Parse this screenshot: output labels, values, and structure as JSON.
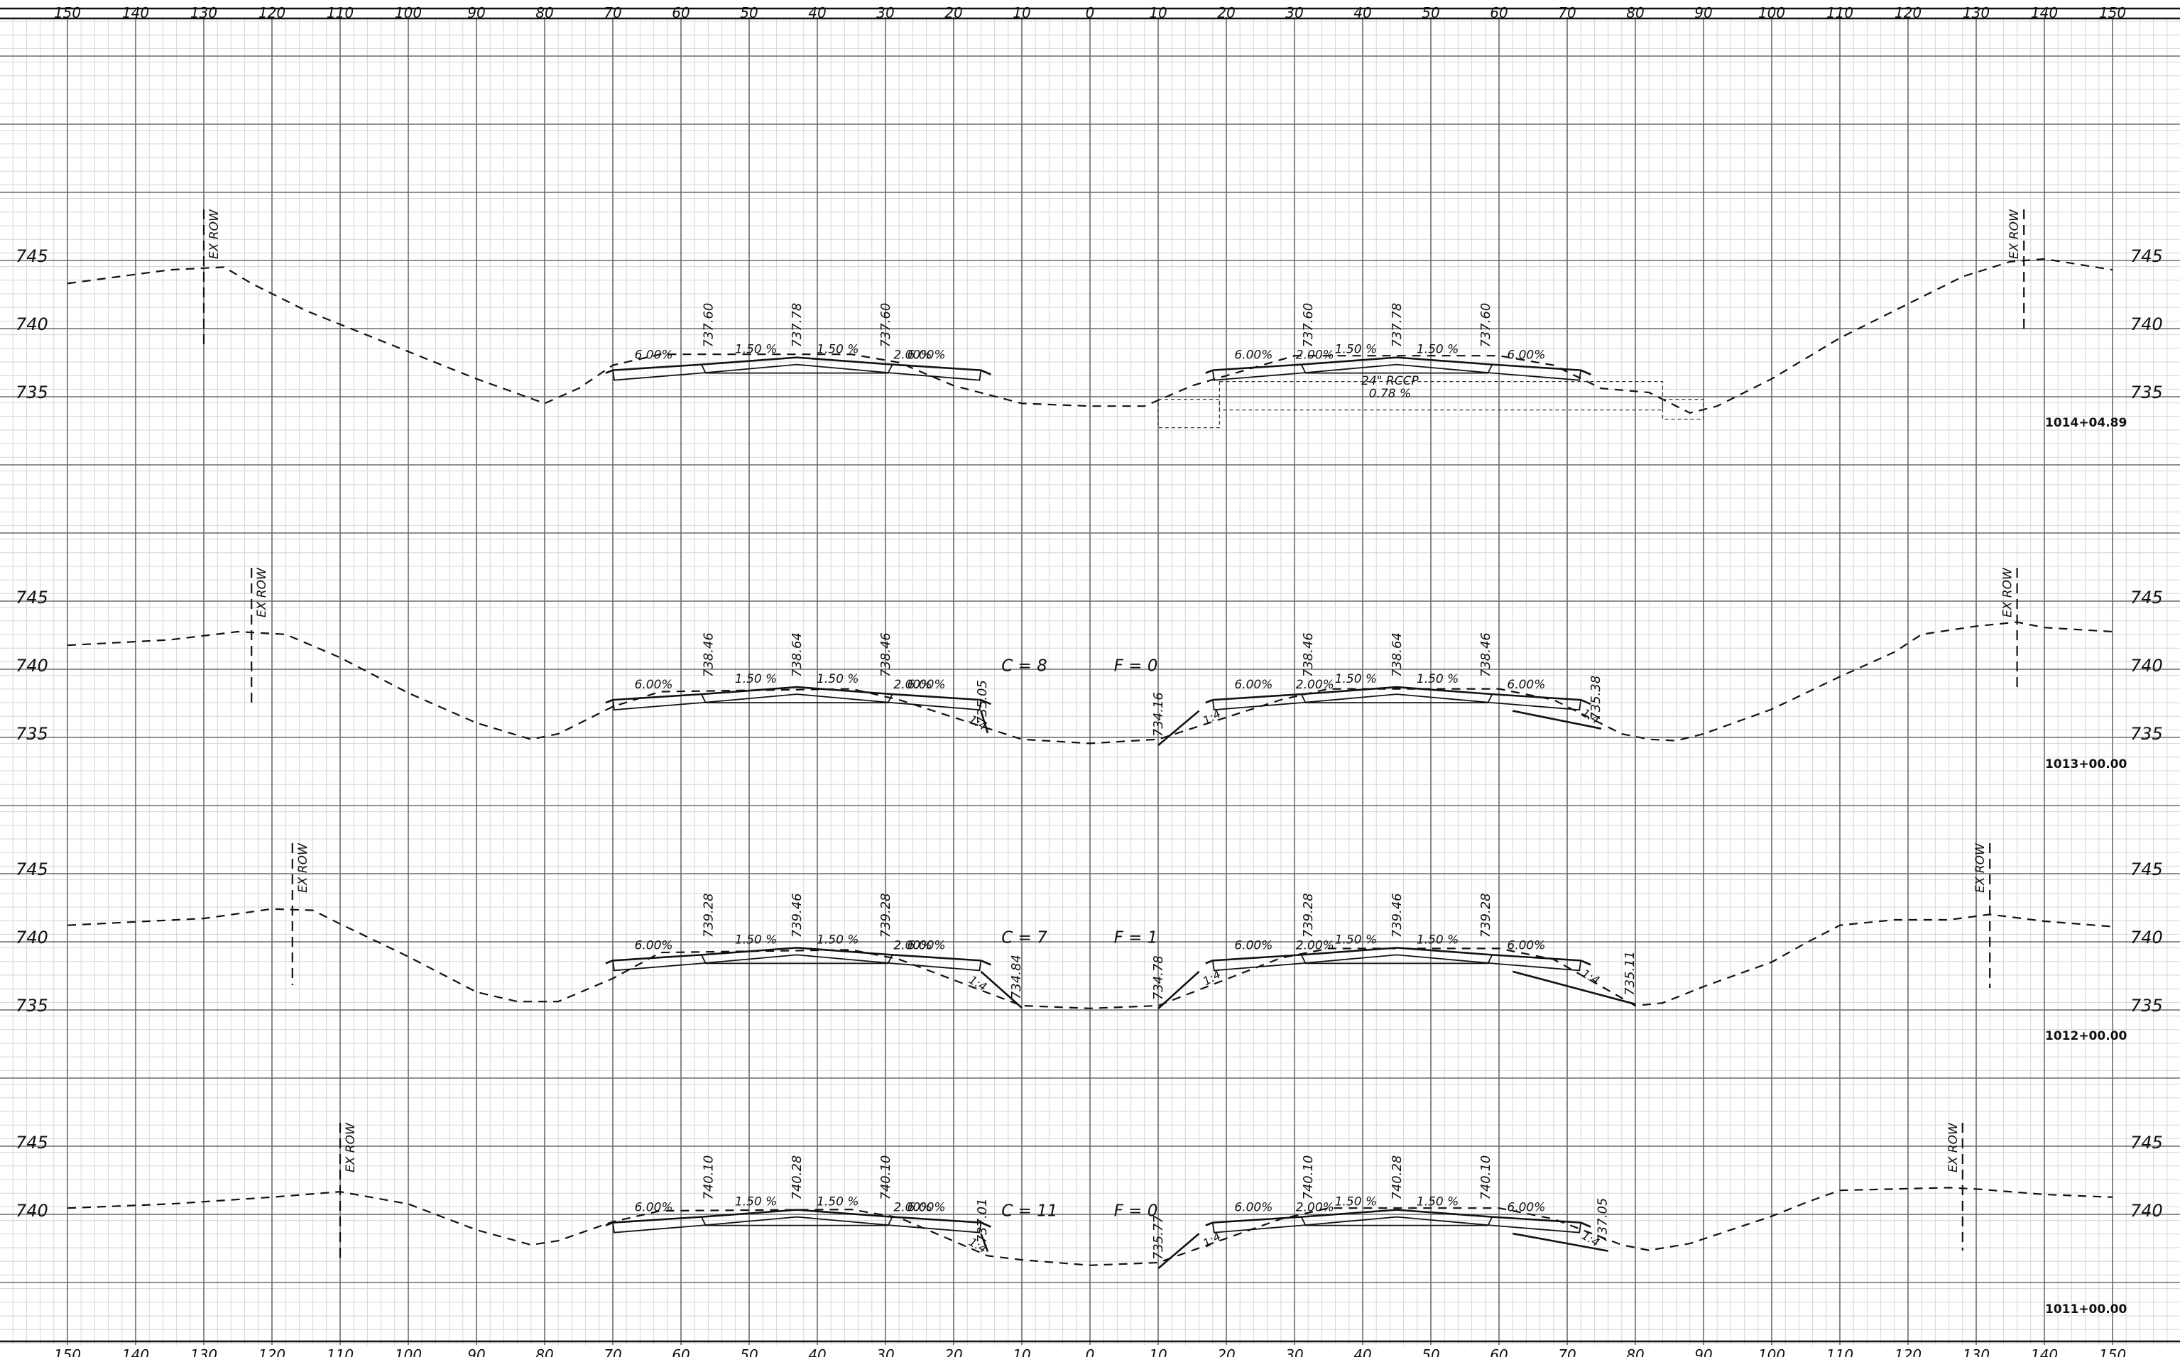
{
  "sheet": {
    "top_scale": [
      "150",
      "140",
      "130",
      "120",
      "110",
      "100",
      "90",
      "80",
      "70",
      "60",
      "50",
      "40",
      "30",
      "20",
      "10",
      "0",
      "10",
      "20",
      "30",
      "40",
      "50",
      "60",
      "70",
      "80",
      "90",
      "100",
      "110",
      "120",
      "130",
      "140",
      "150"
    ],
    "bottom_scale": [
      "150",
      "140",
      "130",
      "120",
      "110",
      "100",
      "90",
      "80",
      "70",
      "60",
      "50",
      "40",
      "30",
      "20",
      "10",
      "0",
      "10",
      "20",
      "30",
      "40",
      "50",
      "60",
      "70",
      "80",
      "90",
      "100",
      "110",
      "120",
      "130",
      "140",
      "150"
    ]
  },
  "sections": [
    {
      "station": "1014+04.89",
      "elev_labels": [
        "745",
        "740",
        "735"
      ],
      "left_row": "EX ROW",
      "right_row": "EX ROW",
      "slopes_left": [
        "6.00%",
        "1.50 %",
        "1.50 %",
        "6.00%"
      ],
      "slopes_right": [
        "6.00%",
        "1.50 %",
        "1.50 %",
        "6.00%"
      ],
      "shoulder_slope": "2.00%",
      "grades_left": [
        "737.60",
        "737.78",
        "737.60"
      ],
      "grades_right": [
        "737.60",
        "737.78",
        "737.60"
      ],
      "culvert_size": "24\" RCCP",
      "culvert_slope": "0.78 %",
      "cut_label": "",
      "fill_label": "",
      "median_elevs": [],
      "outer_elev": "",
      "side_slopes": []
    },
    {
      "station": "1013+00.00",
      "elev_labels": [
        "745",
        "740",
        "735"
      ],
      "left_row": "EX ROW",
      "right_row": "EX ROW",
      "slopes_left": [
        "6.00%",
        "1.50 %",
        "1.50 %",
        "6.00%"
      ],
      "slopes_right": [
        "6.00%",
        "1.50 %",
        "1.50 %",
        "6.00%"
      ],
      "shoulder_slope": "2.00%",
      "grades_left": [
        "738.46",
        "738.64",
        "738.46"
      ],
      "grades_right": [
        "738.46",
        "738.64",
        "738.46"
      ],
      "culvert_size": "",
      "culvert_slope": "",
      "cut_label": "C = 8",
      "fill_label": "F = 0",
      "median_elevs": [
        "735.05",
        "734.16"
      ],
      "outer_elev": "735.38",
      "side_slopes": [
        "1:4",
        "1:4",
        "1:4"
      ]
    },
    {
      "station": "1012+00.00",
      "elev_labels": [
        "745",
        "740",
        "735"
      ],
      "left_row": "EX ROW",
      "right_row": "EX ROW",
      "slopes_left": [
        "6.00%",
        "1.50 %",
        "1.50 %",
        "6.00%"
      ],
      "slopes_right": [
        "6.00%",
        "1.50 %",
        "1.50 %",
        "6.00%"
      ],
      "shoulder_slope": "2.00%",
      "grades_left": [
        "739.28",
        "739.46",
        "739.28"
      ],
      "grades_right": [
        "739.28",
        "739.46",
        "739.28"
      ],
      "culvert_size": "",
      "culvert_slope": "",
      "cut_label": "C = 7",
      "fill_label": "F = 1",
      "median_elevs": [
        "734.84",
        "734.78"
      ],
      "outer_elev": "735.11",
      "side_slopes": [
        "1:4",
        "1:4",
        "1:4"
      ]
    },
    {
      "station": "1011+00.00",
      "elev_labels": [
        "745",
        "740"
      ],
      "left_row": "EX ROW",
      "right_row": "EX ROW",
      "slopes_left": [
        "6.00%",
        "1.50 %",
        "1.50 %",
        "6.00%"
      ],
      "slopes_right": [
        "6.00%",
        "1.50 %",
        "1.50 %",
        "6.00%"
      ],
      "shoulder_slope": "2.00%",
      "grades_left": [
        "740.10",
        "740.28",
        "740.10"
      ],
      "grades_right": [
        "740.10",
        "740.28",
        "740.10"
      ],
      "culvert_size": "",
      "culvert_slope": "",
      "cut_label": "C = 11",
      "fill_label": "F = 0",
      "median_elevs": [
        "737.01",
        "735.77"
      ],
      "outer_elev": "737.05",
      "side_slopes": [
        "1:4",
        "1:4",
        "1:4"
      ]
    }
  ]
}
